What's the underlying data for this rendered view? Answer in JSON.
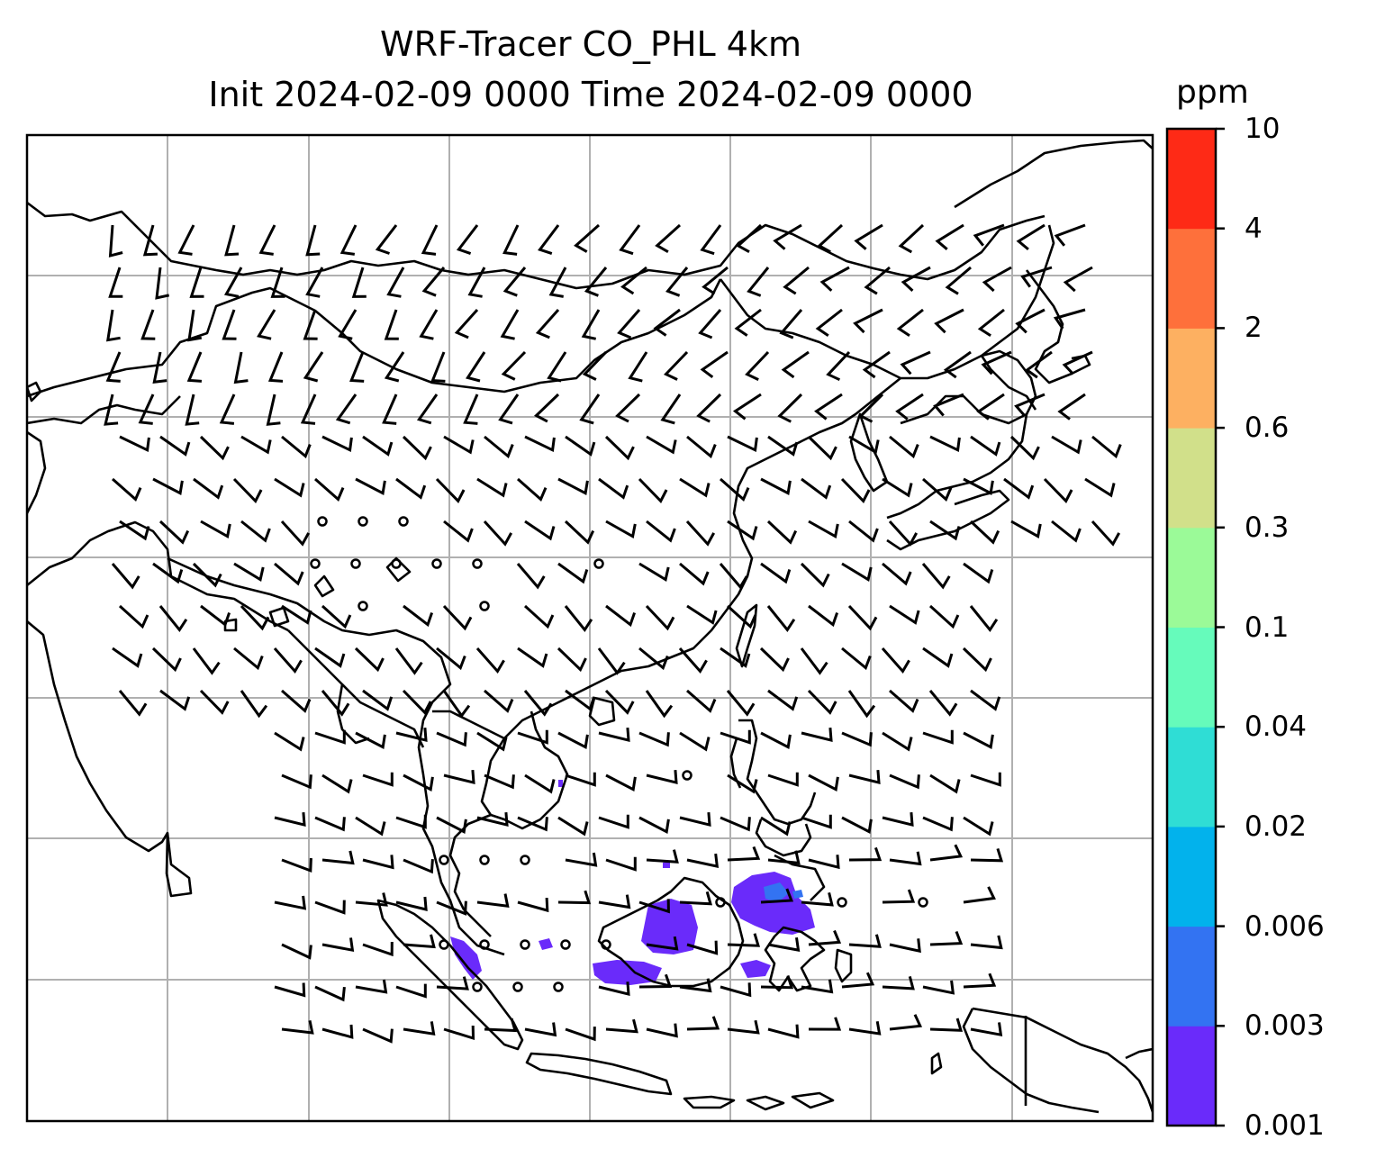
{
  "title": {
    "line1": "WRF-Tracer CO_PHL 4km",
    "line2": "Init 2024-02-09 0000 Time 2024-02-09 0000"
  },
  "colorbar": {
    "unit": "ppm",
    "labels": [
      "0.001",
      "0.003",
      "0.006",
      "0.02",
      "0.04",
      "0.1",
      "0.3",
      "0.6",
      "2",
      "4",
      "10"
    ],
    "colors": [
      "#6a2bfa",
      "#3373f2",
      "#02b2ec",
      "#2fddd5",
      "#66fbbb",
      "#9bfa98",
      "#d1e08a",
      "#fdb061",
      "#fe703b",
      "#fe2a16"
    ]
  },
  "map": {
    "gridlines": true,
    "coastlines": true,
    "wind_barbs": true,
    "tracer_color": "#6a2bfa"
  }
}
